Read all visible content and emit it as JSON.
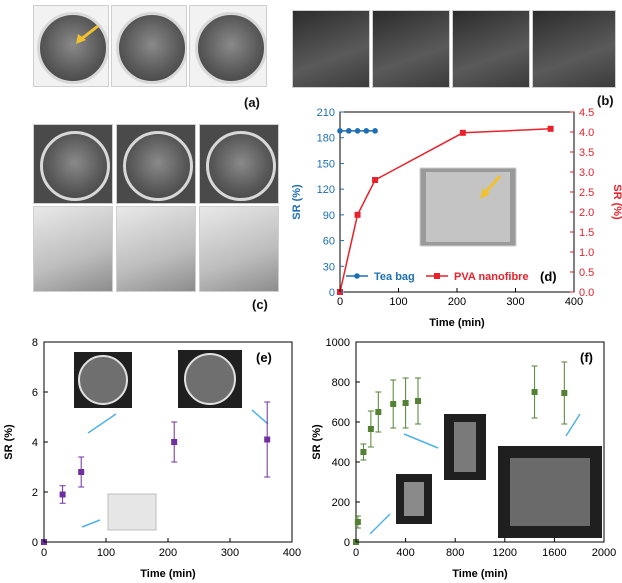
{
  "panel_labels": {
    "a": "(a)",
    "b": "(b)",
    "c": "(c)",
    "d": "(d)",
    "e": "(e)",
    "f": "(f)"
  },
  "chart_data": [
    {
      "panel": "(d)",
      "type": "line",
      "xlabel": "Time (min)",
      "ylabel_left": "SR (%)",
      "ylabel_right": "SR (%)",
      "xlim": [
        0,
        400
      ],
      "ylim_left": [
        0,
        210
      ],
      "ylim_right": [
        0,
        4.5
      ],
      "x_ticks": [
        0,
        100,
        200,
        300,
        400
      ],
      "y_ticks_left": [
        0,
        30,
        60,
        90,
        120,
        150,
        180,
        210
      ],
      "y_ticks_right": [
        "0.0",
        "0.5",
        "1.0",
        "1.5",
        "2.0",
        "2.5",
        "3.0",
        "3.5",
        "4.0",
        "4.5"
      ],
      "legend_placement": "bottom-left",
      "series": [
        {
          "name": "Tea bag",
          "axis": "left",
          "color": "#1f6fb5",
          "points": [
            [
              0,
              188
            ],
            [
              15,
              188
            ],
            [
              30,
              188
            ],
            [
              45,
              188
            ],
            [
              60,
              188
            ]
          ]
        },
        {
          "name": "PVA nanofibre",
          "axis": "right",
          "color": "#e8212b",
          "points": [
            [
              0,
              0
            ],
            [
              30,
              1.93
            ],
            [
              60,
              2.8
            ],
            [
              210,
              3.98
            ],
            [
              360,
              4.08
            ]
          ]
        }
      ]
    },
    {
      "panel": "(e)",
      "type": "scatter",
      "xlabel": "Time (min)",
      "ylabel": "SR (%)",
      "xlim": [
        0,
        400
      ],
      "ylim": [
        0,
        8
      ],
      "x_ticks": [
        0,
        100,
        200,
        300,
        400
      ],
      "y_ticks": [
        0,
        2,
        4,
        6,
        8
      ],
      "color": "#7030a0",
      "points": [
        {
          "x": 0,
          "y": 0,
          "err": 0
        },
        {
          "x": 30,
          "y": 1.9,
          "err": 0.35
        },
        {
          "x": 60,
          "y": 2.8,
          "err": 0.6
        },
        {
          "x": 210,
          "y": 4.0,
          "err": 0.8
        },
        {
          "x": 360,
          "y": 4.1,
          "err": 1.5
        }
      ]
    },
    {
      "panel": "(f)",
      "type": "scatter",
      "xlabel": "Time (min)",
      "ylabel": "SR (%)",
      "xlim": [
        0,
        2000
      ],
      "ylim": [
        0,
        1000
      ],
      "x_ticks": [
        0,
        400,
        800,
        1200,
        1600,
        2000
      ],
      "y_ticks": [
        0,
        200,
        400,
        600,
        800,
        1000
      ],
      "color": "#548235",
      "points": [
        {
          "x": 0,
          "y": 0,
          "err": 0
        },
        {
          "x": 15,
          "y": 100,
          "err": 30
        },
        {
          "x": 60,
          "y": 450,
          "err": 40
        },
        {
          "x": 120,
          "y": 565,
          "err": 90
        },
        {
          "x": 180,
          "y": 650,
          "err": 100
        },
        {
          "x": 300,
          "y": 690,
          "err": 120
        },
        {
          "x": 400,
          "y": 695,
          "err": 125
        },
        {
          "x": 500,
          "y": 705,
          "err": 115
        },
        {
          "x": 1440,
          "y": 750,
          "err": 130
        },
        {
          "x": 1680,
          "y": 745,
          "err": 155
        }
      ]
    }
  ]
}
